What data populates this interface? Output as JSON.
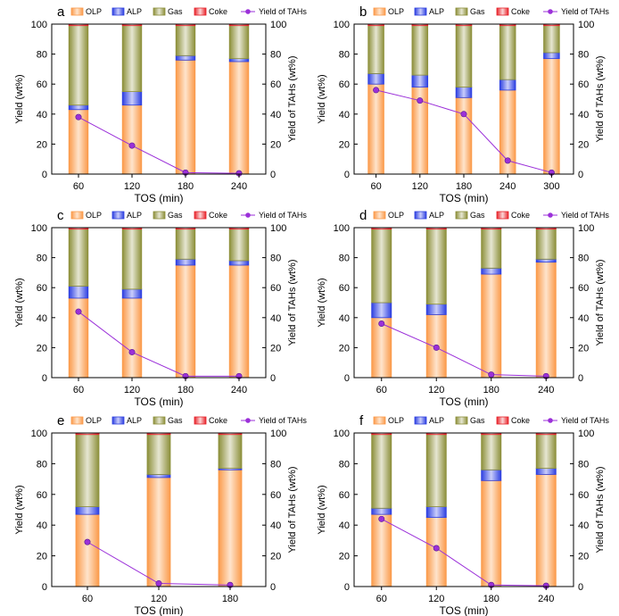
{
  "colors": {
    "olp": "#fb9a4a",
    "olp_light": "#fee4cc",
    "alp": "#2d3fe0",
    "alp_light": "#c9cdfb",
    "gas": "#8c8f3a",
    "gas_light": "#e6e6d2",
    "coke": "#e7222a",
    "coke_light": "#fbd6d6",
    "yield": "#9b30d9"
  },
  "legend": [
    "OLP",
    "ALP",
    "Gas",
    "Coke",
    "Yield of TAHs"
  ],
  "chart_data": [
    {
      "panel": "a",
      "type": "bar",
      "categories": [
        "60",
        "120",
        "180",
        "240"
      ],
      "series": [
        {
          "name": "OLP",
          "values": [
            43,
            46,
            76,
            75
          ]
        },
        {
          "name": "ALP",
          "values": [
            3,
            9,
            3,
            2
          ]
        },
        {
          "name": "Gas",
          "values": [
            53,
            44,
            20,
            22
          ]
        },
        {
          "name": "Coke",
          "values": [
            1,
            1,
            1,
            1
          ]
        }
      ],
      "line": {
        "name": "Yield of TAHs",
        "values": [
          38,
          19,
          1,
          0.5
        ]
      },
      "xlabel": "TOS (min)",
      "ylabel": "Yield (wt%)",
      "y2label": "Yield of TAHs (wt%)",
      "ylim": [
        0,
        100
      ],
      "yticks": [
        0,
        20,
        40,
        60,
        80,
        100
      ]
    },
    {
      "panel": "b",
      "type": "bar",
      "categories": [
        "60",
        "120",
        "180",
        "240",
        "300"
      ],
      "series": [
        {
          "name": "OLP",
          "values": [
            60,
            58,
            51,
            56,
            77
          ]
        },
        {
          "name": "ALP",
          "values": [
            7,
            8,
            7,
            7,
            4
          ]
        },
        {
          "name": "Gas",
          "values": [
            32,
            33,
            41,
            36,
            18
          ]
        },
        {
          "name": "Coke",
          "values": [
            1,
            1,
            1,
            1,
            1
          ]
        }
      ],
      "line": {
        "name": "Yield of TAHs",
        "values": [
          56,
          49,
          40,
          9,
          1
        ]
      },
      "xlabel": "TOS (min)",
      "ylabel": "Yield (wt%)",
      "y2label": "Yield of TAHs (wt%)",
      "ylim": [
        0,
        100
      ],
      "yticks": [
        0,
        20,
        40,
        60,
        80,
        100
      ]
    },
    {
      "panel": "c",
      "type": "bar",
      "categories": [
        "60",
        "120",
        "180",
        "240"
      ],
      "series": [
        {
          "name": "OLP",
          "values": [
            53,
            53,
            75,
            75
          ]
        },
        {
          "name": "ALP",
          "values": [
            8,
            6,
            4,
            3
          ]
        },
        {
          "name": "Gas",
          "values": [
            38,
            40,
            20,
            21
          ]
        },
        {
          "name": "Coke",
          "values": [
            1,
            1,
            1,
            1
          ]
        }
      ],
      "line": {
        "name": "Yield of TAHs",
        "values": [
          44,
          17,
          1,
          1
        ]
      },
      "xlabel": "TOS (min)",
      "ylabel": "Yield (wt%)",
      "y2label": "Yield of TAHs (wt%)",
      "ylim": [
        0,
        100
      ],
      "yticks": [
        0,
        20,
        40,
        60,
        80,
        100
      ]
    },
    {
      "panel": "d",
      "type": "bar",
      "categories": [
        "60",
        "120",
        "180",
        "240"
      ],
      "series": [
        {
          "name": "OLP",
          "values": [
            40,
            42,
            69,
            77
          ]
        },
        {
          "name": "ALP",
          "values": [
            10,
            7,
            4,
            2
          ]
        },
        {
          "name": "Gas",
          "values": [
            49,
            50,
            26,
            20
          ]
        },
        {
          "name": "Coke",
          "values": [
            1,
            1,
            1,
            1
          ]
        }
      ],
      "line": {
        "name": "Yield of TAHs",
        "values": [
          36,
          20,
          2,
          1
        ]
      },
      "xlabel": "TOS (min)",
      "ylabel": "Yield (wt%)",
      "y2label": "Yield of TAHs (wt%)",
      "ylim": [
        0,
        100
      ],
      "yticks": [
        0,
        20,
        40,
        60,
        80,
        100
      ]
    },
    {
      "panel": "e",
      "type": "bar",
      "categories": [
        "60",
        "120",
        "180"
      ],
      "series": [
        {
          "name": "OLP",
          "values": [
            47,
            71,
            76
          ]
        },
        {
          "name": "ALP",
          "values": [
            5,
            2,
            1
          ]
        },
        {
          "name": "Gas",
          "values": [
            47,
            26,
            22
          ]
        },
        {
          "name": "Coke",
          "values": [
            1,
            1,
            1
          ]
        }
      ],
      "line": {
        "name": "Yield of TAHs",
        "values": [
          29,
          2,
          1
        ]
      },
      "xlabel": "TOS (min)",
      "ylabel": "Yield (wt%)",
      "y2label": "Yield of TAHs (wt%)",
      "ylim": [
        0,
        100
      ],
      "yticks": [
        0,
        20,
        40,
        60,
        80,
        100
      ]
    },
    {
      "panel": "f",
      "type": "bar",
      "categories": [
        "60",
        "120",
        "180",
        "240"
      ],
      "series": [
        {
          "name": "OLP",
          "values": [
            47,
            45,
            69,
            73
          ]
        },
        {
          "name": "ALP",
          "values": [
            4,
            7,
            7,
            4
          ]
        },
        {
          "name": "Gas",
          "values": [
            48,
            47,
            23,
            22
          ]
        },
        {
          "name": "Coke",
          "values": [
            1,
            1,
            1,
            1
          ]
        }
      ],
      "line": {
        "name": "Yield of TAHs",
        "values": [
          44,
          25,
          1,
          0.5
        ]
      },
      "xlabel": "TOS (min)",
      "ylabel": "Yield (wt%)",
      "y2label": "Yield of TAHs (wt%)",
      "ylim": [
        0,
        100
      ],
      "yticks": [
        0,
        20,
        40,
        60,
        80,
        100
      ]
    }
  ]
}
